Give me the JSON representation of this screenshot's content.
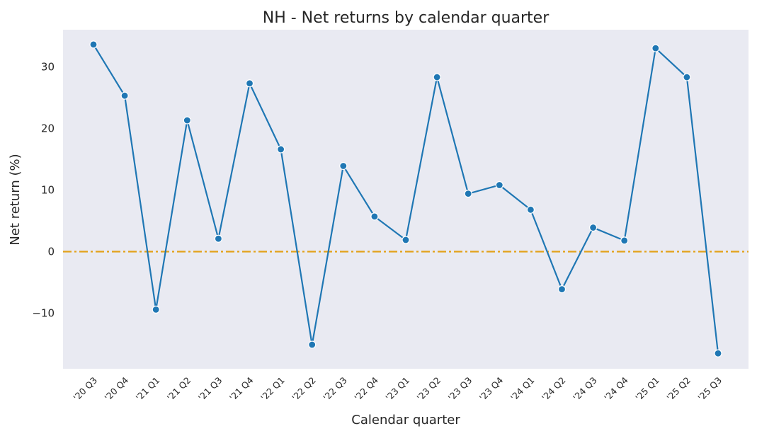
{
  "chart_data": {
    "type": "line",
    "title": "NH - Net returns by calendar quarter",
    "xlabel": "Calendar quarter",
    "ylabel": "Net return (%)",
    "categories": [
      "'20 Q3",
      "'20 Q4",
      "'21 Q1",
      "'21 Q2",
      "'21 Q3",
      "'21 Q4",
      "'22 Q1",
      "'22 Q2",
      "'22 Q3",
      "'22 Q4",
      "'23 Q1",
      "'23 Q2",
      "'23 Q3",
      "'23 Q4",
      "'24 Q1",
      "'24 Q2",
      "'24 Q3",
      "'24 Q4",
      "'25 Q1",
      "'25 Q2",
      "'25 Q3"
    ],
    "series": [
      {
        "values": [
          33.6,
          25.3,
          -9.4,
          21.3,
          2.1,
          27.3,
          16.6,
          -15.1,
          13.9,
          5.7,
          1.9,
          28.3,
          9.4,
          10.8,
          6.8,
          -6.1,
          3.9,
          1.8,
          33.0,
          28.3,
          -16.5
        ],
        "color": "#1f77b4"
      }
    ],
    "reference_line": {
      "y": 0,
      "color": "#e3a21a",
      "style": "dash-dot"
    },
    "yticks": [
      -10,
      0,
      10,
      20,
      30
    ],
    "ylim": [
      -19,
      36
    ],
    "grid": false,
    "background": "#e9eaf2"
  }
}
